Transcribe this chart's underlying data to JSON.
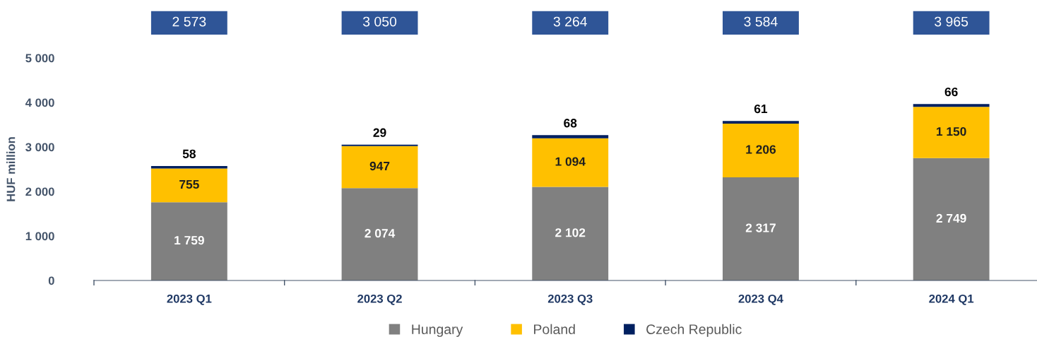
{
  "chart_data": {
    "type": "bar",
    "stacked": true,
    "ylabel": "HUF million",
    "categories": [
      "2023 Q1",
      "2023 Q2",
      "2023 Q3",
      "2023 Q4",
      "2024 Q1"
    ],
    "series": [
      {
        "name": "Hungary",
        "color": "#808080",
        "values": [
          1759,
          2074,
          2102,
          2317,
          2749
        ],
        "value_labels": [
          "1 759",
          "2 074",
          "2 102",
          "2 317",
          "2 749"
        ]
      },
      {
        "name": "Poland",
        "color": "#ffc000",
        "values": [
          755,
          947,
          1094,
          1206,
          1150
        ],
        "value_labels": [
          "755",
          "947",
          "1 094",
          "1 206",
          "1 150"
        ]
      },
      {
        "name": "Czech Republic",
        "color": "#002060",
        "values": [
          58,
          29,
          68,
          61,
          66
        ],
        "value_labels": [
          "58",
          "29",
          "68",
          "61",
          "66"
        ]
      }
    ],
    "annotations": [
      "2 573",
      "3 050",
      "3 264",
      "3 584",
      "3 965"
    ],
    "ylim": [
      0,
      5000
    ],
    "yticks": [
      {
        "value": 0,
        "label": "0"
      },
      {
        "value": 1000,
        "label": "1 000"
      },
      {
        "value": 2000,
        "label": "2 000"
      },
      {
        "value": 3000,
        "label": "3 000"
      },
      {
        "value": 4000,
        "label": "4 000"
      },
      {
        "value": 5000,
        "label": "5 000"
      }
    ],
    "grid": false,
    "legend": "bottom"
  }
}
